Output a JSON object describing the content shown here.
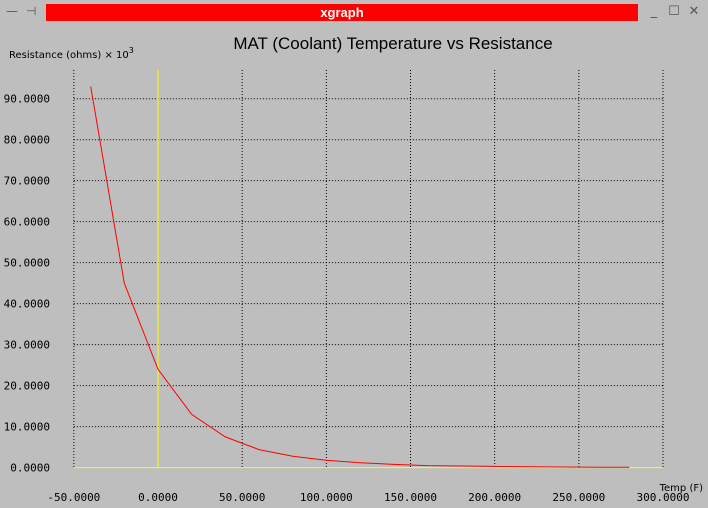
{
  "window": {
    "title": "xgraph",
    "title_bg": "#ff0000",
    "controls": {
      "menu_glyph": "—",
      "pin_glyph": "⊣",
      "min_glyph": "_",
      "max_glyph": "☐",
      "close_glyph": "✕"
    }
  },
  "chart_data": {
    "type": "line",
    "title": "MAT (Coolant) Temperature vs Resistance",
    "xlabel": "Temp (F)",
    "ylabel": "Resistance (ohms)",
    "ylabel_scale_base": "10",
    "ylabel_scale_exp": "3",
    "xlim": [
      -60,
      300
    ],
    "ylim": [
      -3.5,
      97
    ],
    "x_ticks": [
      -50,
      0,
      50,
      100,
      150,
      200,
      250,
      300
    ],
    "x_tick_labels": [
      "-50.0000",
      "0.0000",
      "50.0000",
      "100.0000",
      "150.0000",
      "200.0000",
      "250.0000",
      "300.0000"
    ],
    "y_ticks": [
      0,
      10,
      20,
      30,
      40,
      50,
      60,
      70,
      80,
      90
    ],
    "y_tick_labels": [
      "0.0000",
      "10.0000",
      "20.0000",
      "30.0000",
      "40.0000",
      "50.0000",
      "60.0000",
      "70.0000",
      "80.0000",
      "90.0000"
    ],
    "grid": true,
    "background": "#bebebe",
    "grid_color": "#000000",
    "zero_axis_color": "#ffff00",
    "series": [
      {
        "color": "#ff0000",
        "x": [
          -40,
          -20,
          0,
          20,
          40,
          60,
          80,
          100,
          120,
          140,
          160,
          180,
          200,
          220,
          240,
          260,
          280
        ],
        "y": [
          93.0,
          45.0,
          24.0,
          13.0,
          7.5,
          4.4,
          2.8,
          1.8,
          1.2,
          0.8,
          0.5,
          0.4,
          0.3,
          0.2,
          0.15,
          0.1,
          0.08
        ]
      }
    ]
  }
}
